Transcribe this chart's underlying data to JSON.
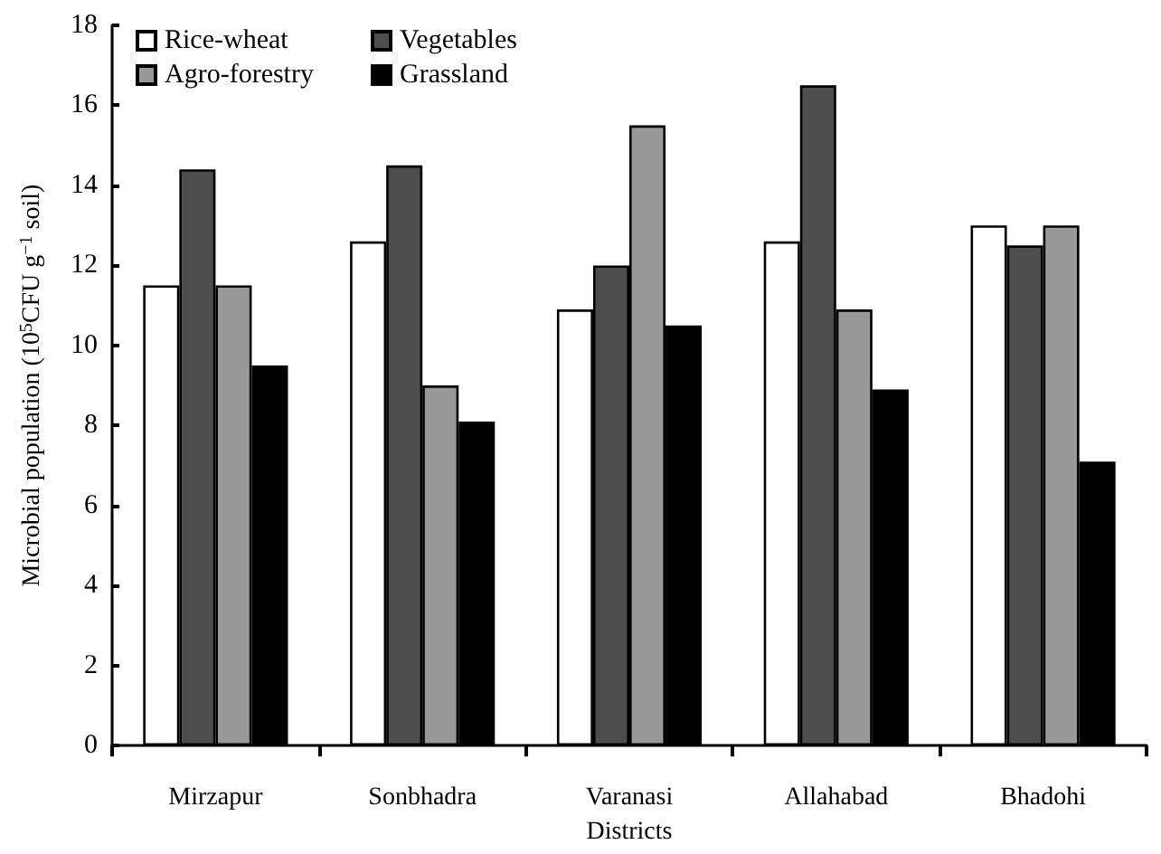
{
  "chart_data": {
    "type": "bar",
    "xlabel": "Districts",
    "ylabel": "Microbial population (10$^{5}$CFU g$^{−1}$ soil)",
    "categories": [
      "Mirzapur",
      "Sonbhadra",
      "Varanasi",
      "Allahabad",
      "Bhadohi"
    ],
    "series": [
      {
        "name": "Rice-wheat",
        "color": "#ffffff",
        "values": [
          11.5,
          12.6,
          10.9,
          12.6,
          13.0
        ]
      },
      {
        "name": "Vegetables",
        "color": "#4d4d4d",
        "values": [
          14.4,
          14.5,
          12.0,
          16.5,
          12.5
        ]
      },
      {
        "name": "Agro-forestry",
        "color": "#999999",
        "values": [
          11.5,
          9.0,
          15.5,
          10.9,
          13.0
        ]
      },
      {
        "name": "Grassland",
        "color": "#000000",
        "values": [
          9.5,
          8.1,
          10.5,
          8.9,
          7.1
        ]
      }
    ],
    "ylim": [
      0,
      18
    ],
    "yticks": [
      0,
      2,
      4,
      6,
      8,
      10,
      12,
      14,
      16,
      18
    ],
    "grid": false,
    "legend": "top left"
  }
}
